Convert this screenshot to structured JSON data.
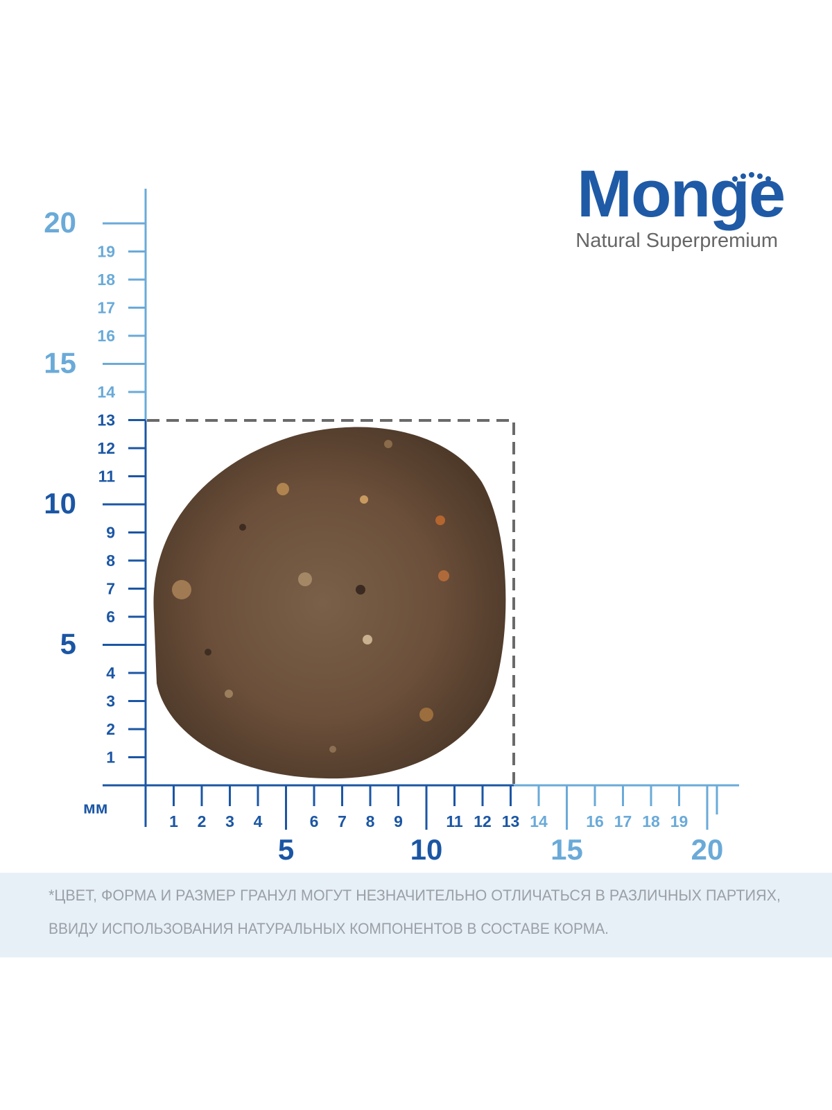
{
  "brand": {
    "name": "Monge",
    "tagline": "Natural Superpremium"
  },
  "unit": "мм",
  "colors": {
    "dark": "#1b56a4",
    "light": "#6aaad8"
  },
  "vertical_ruler": {
    "minor_dark": [
      1,
      2,
      3,
      4,
      6,
      7,
      8,
      9,
      11,
      12,
      13
    ],
    "minor_light": [
      14,
      16,
      17,
      18,
      19
    ],
    "major_dark": [
      5,
      10
    ],
    "major_light": [
      15,
      20
    ]
  },
  "horizontal_ruler": {
    "minor_dark": [
      1,
      2,
      3,
      4,
      6,
      7,
      8,
      9,
      11,
      12,
      13
    ],
    "minor_light": [
      14,
      16,
      17,
      18,
      19
    ],
    "major_dark": [
      5,
      10
    ],
    "major_light": [
      15,
      20
    ]
  },
  "footnote": {
    "lines": [
      "*ЦВЕТ, ФОРМА И РАЗМЕР ГРАНУЛ МОГУТ НЕЗНАЧИТЕЛЬНО ОТЛИЧАТЬСЯ В РАЗЛИЧНЫХ ПАРТИЯХ,",
      "ВВИДУ ИСПОЛЬЗОВАНИЯ НАТУРАЛЬНЫХ КОМПОНЕНТОВ В СОСТАВЕ КОРМА."
    ]
  }
}
